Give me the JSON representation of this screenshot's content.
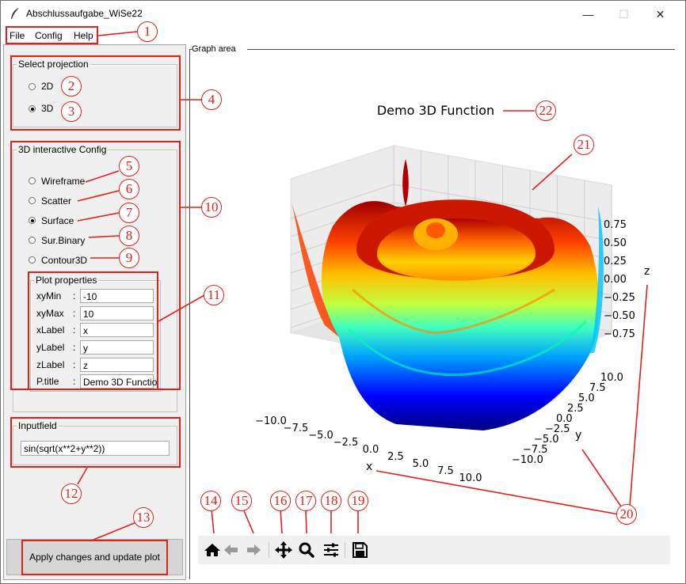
{
  "window": {
    "title": "Abschlussaufgabe_WiSe22",
    "controls": {
      "minimize": "—",
      "maximize": "☐",
      "close": "✕"
    }
  },
  "menu": [
    "File",
    "Config",
    "Help"
  ],
  "projection": {
    "title": "Select projection",
    "options": [
      "2D",
      "3D"
    ],
    "selected": "3D"
  },
  "config3d": {
    "title": "3D interactive Config",
    "options": [
      "Wireframe",
      "Scatter",
      "Surface",
      "Sur.Binary",
      "Contour3D"
    ],
    "selected": "Surface"
  },
  "plot_props": {
    "title": "Plot properties",
    "fields": [
      {
        "label": "xyMin",
        "value": "-10"
      },
      {
        "label": "xyMax",
        "value": "10"
      },
      {
        "label": "xLabel",
        "value": "x"
      },
      {
        "label": "yLabel",
        "value": "y"
      },
      {
        "label": "zLabel",
        "value": "z"
      },
      {
        "label": "P.title",
        "value": "Demo 3D Functio"
      }
    ],
    "colon": ":"
  },
  "inputfield": {
    "title": "Inputfield",
    "value": "sin(sqrt(x**2+y**2))"
  },
  "apply_button": "Apply changes and update plot",
  "graph": {
    "area_label": "Graph area",
    "title": "Demo 3D Function",
    "x_label": "x",
    "y_label": "y",
    "z_label": "z",
    "x_ticks": [
      "−10.0",
      "−7.5",
      "−5.0",
      "−2.5",
      "0.0",
      "2.5",
      "5.0",
      "7.5",
      "10.0"
    ],
    "y_ticks": [
      "10.0",
      "7.5",
      "5.0",
      "2.5",
      "0.0",
      "−2.5",
      "−5.0",
      "−7.5",
      "−10.0"
    ],
    "z_ticks": [
      "0.75",
      "0.50",
      "0.25",
      "0.00",
      "−0.25",
      "−0.50",
      "−0.75"
    ],
    "colormap": "jet"
  },
  "toolbar": [
    "home-icon",
    "back-icon",
    "forward-icon",
    "pan-icon",
    "zoom-icon",
    "configure-icon",
    "save-icon"
  ],
  "annotations": [
    "1",
    "2",
    "3",
    "4",
    "5",
    "6",
    "7",
    "8",
    "9",
    "10",
    "11",
    "12",
    "13",
    "14",
    "15",
    "16",
    "17",
    "18",
    "19",
    "20",
    "21",
    "22"
  ],
  "colors": {
    "annotation": "#e32119",
    "sidebar": "#f0f0f0",
    "toolbar": "#f0f0f0"
  }
}
